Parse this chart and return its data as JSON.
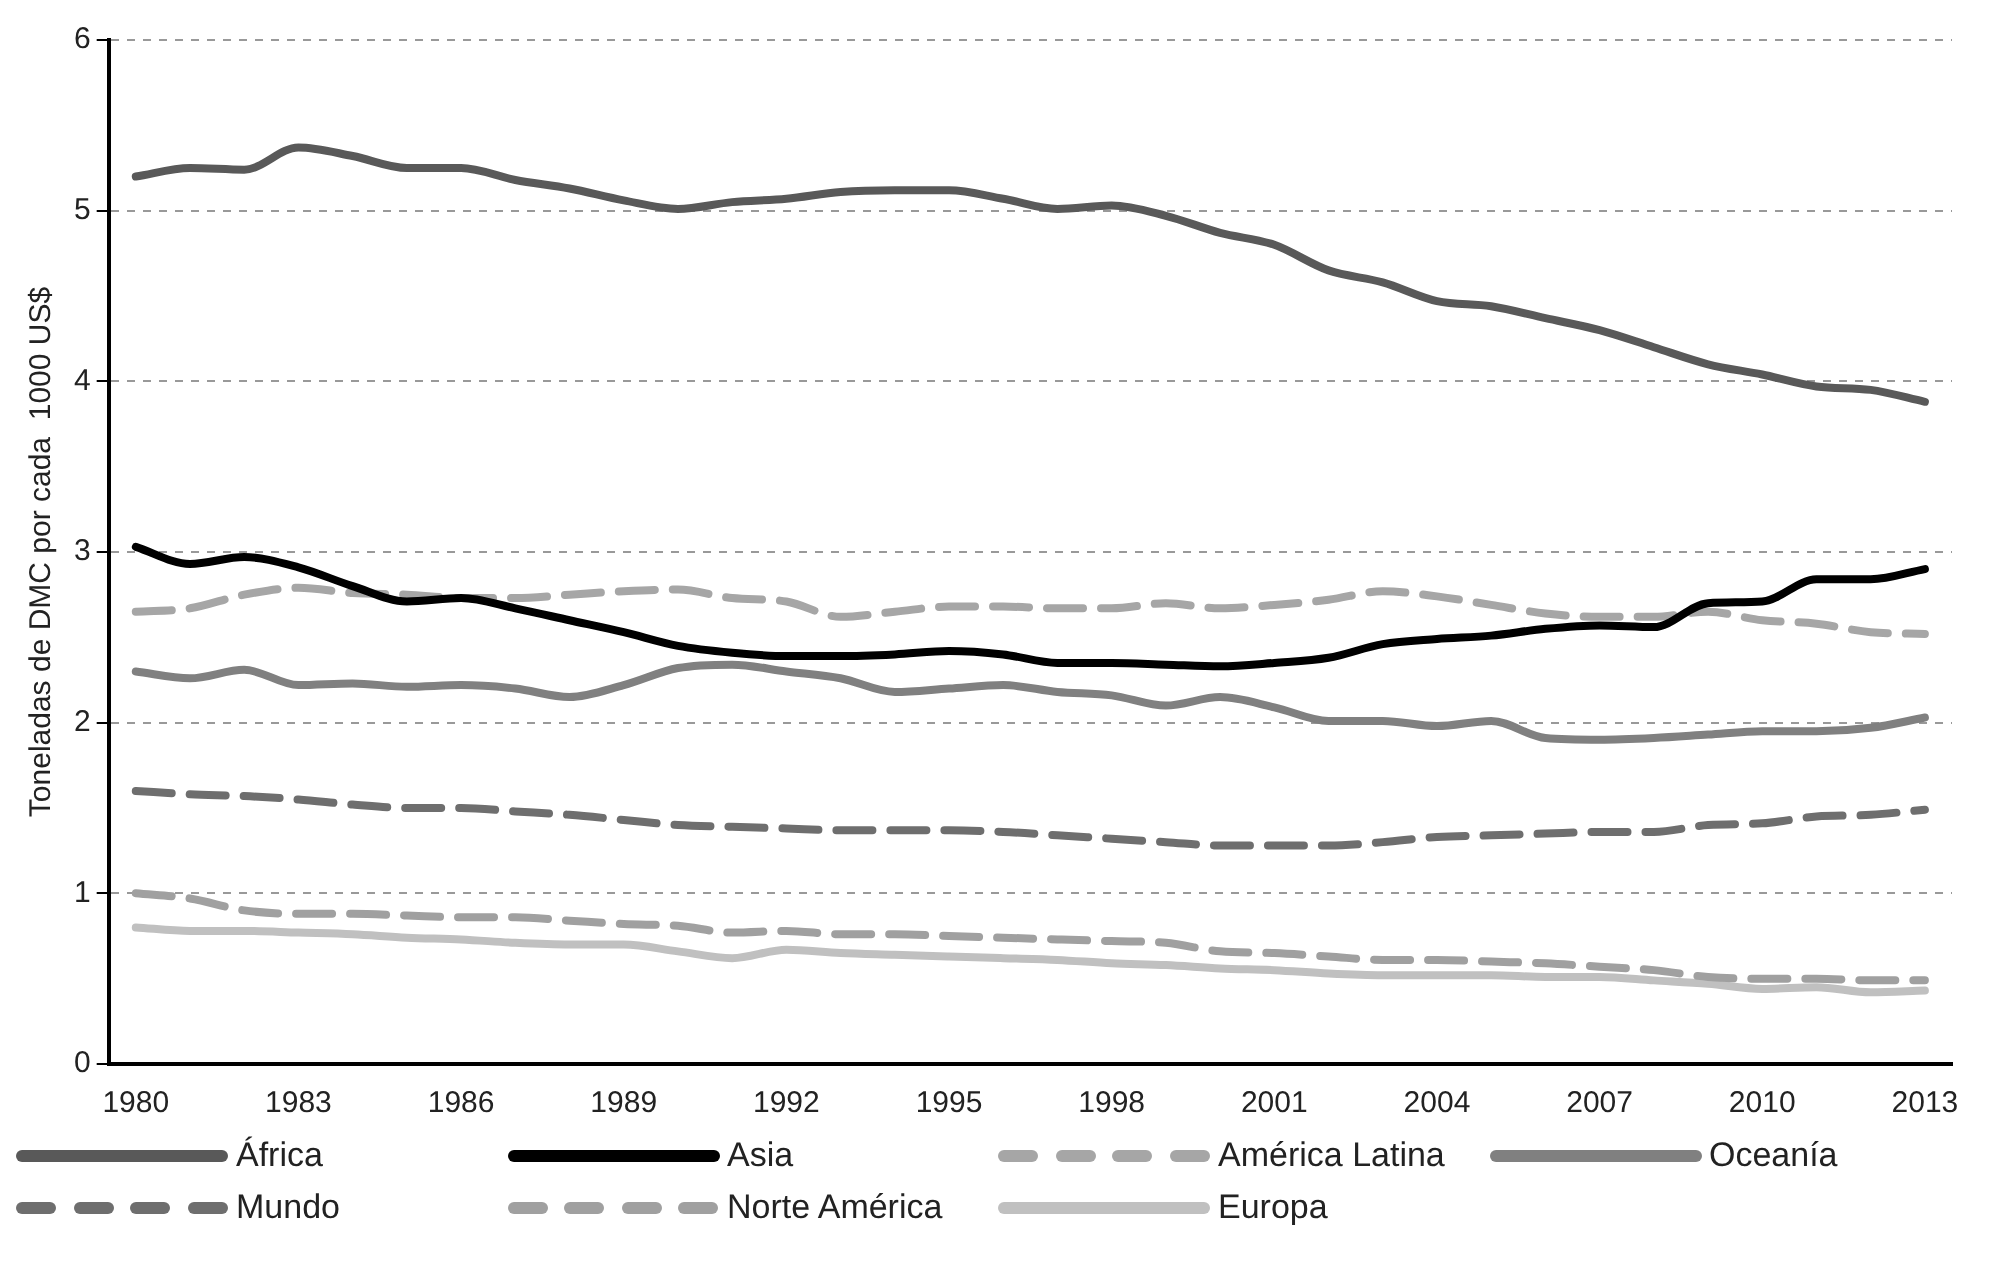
{
  "chart_data": {
    "type": "line",
    "ylabel": "Toneladas de DMC por cada  1000 US$",
    "x": [
      1980,
      1981,
      1982,
      1983,
      1984,
      1985,
      1986,
      1987,
      1988,
      1989,
      1990,
      1991,
      1992,
      1993,
      1994,
      1995,
      1996,
      1997,
      1998,
      1999,
      2000,
      2001,
      2002,
      2003,
      2004,
      2005,
      2006,
      2007,
      2008,
      2009,
      2010,
      2011,
      2012,
      2013
    ],
    "xlim": [
      1979.5,
      2013.5
    ],
    "xticks": [
      1980,
      1983,
      1986,
      1989,
      1992,
      1995,
      1998,
      2001,
      2004,
      2007,
      2010,
      2013
    ],
    "ylim": [
      0,
      6
    ],
    "yticks": [
      0,
      1,
      2,
      3,
      4,
      5,
      6
    ],
    "grid": "y",
    "legend": "bottom",
    "marker": "none",
    "series": [
      {
        "name": "África",
        "color": "#595959",
        "line_style": "solid",
        "values": [
          5.2,
          5.25,
          5.24,
          5.37,
          5.32,
          5.25,
          5.25,
          5.18,
          5.13,
          5.06,
          5.01,
          5.05,
          5.07,
          5.11,
          5.12,
          5.12,
          5.07,
          5.01,
          5.03,
          4.97,
          4.87,
          4.8,
          4.65,
          4.58,
          4.47,
          4.44,
          4.37,
          4.3,
          4.2,
          4.1,
          4.04,
          3.97,
          3.95,
          3.88
        ]
      },
      {
        "name": "Asia",
        "color": "#000000",
        "line_style": "solid",
        "values": [
          3.03,
          2.93,
          2.97,
          2.91,
          2.8,
          2.71,
          2.73,
          2.67,
          2.6,
          2.53,
          2.45,
          2.41,
          2.39,
          2.39,
          2.4,
          2.42,
          2.4,
          2.35,
          2.35,
          2.34,
          2.33,
          2.35,
          2.38,
          2.46,
          2.49,
          2.51,
          2.55,
          2.57,
          2.56,
          2.7,
          2.71,
          2.84,
          2.84,
          2.9
        ]
      },
      {
        "name": "América Latina",
        "color": "#a6a6a6",
        "line_style": "dashed",
        "values": [
          2.65,
          2.67,
          2.75,
          2.79,
          2.76,
          2.75,
          2.73,
          2.73,
          2.75,
          2.77,
          2.78,
          2.73,
          2.71,
          2.62,
          2.65,
          2.68,
          2.68,
          2.67,
          2.67,
          2.7,
          2.67,
          2.69,
          2.72,
          2.77,
          2.74,
          2.69,
          2.64,
          2.62,
          2.62,
          2.65,
          2.6,
          2.58,
          2.53,
          2.52
        ]
      },
      {
        "name": "Oceanía",
        "color": "#808080",
        "line_style": "solid",
        "values": [
          2.3,
          2.26,
          2.31,
          2.22,
          2.23,
          2.21,
          2.22,
          2.2,
          2.15,
          2.22,
          2.32,
          2.34,
          2.3,
          2.26,
          2.18,
          2.2,
          2.22,
          2.18,
          2.16,
          2.1,
          2.15,
          2.09,
          2.01,
          2.01,
          1.98,
          2.01,
          1.91,
          1.9,
          1.91,
          1.93,
          1.95,
          1.95,
          1.97,
          2.03
        ]
      },
      {
        "name": "Mundo",
        "color": "#6e6e6e",
        "line_style": "dashed",
        "values": [
          1.6,
          1.58,
          1.57,
          1.55,
          1.52,
          1.5,
          1.5,
          1.48,
          1.46,
          1.43,
          1.4,
          1.39,
          1.38,
          1.37,
          1.37,
          1.37,
          1.36,
          1.34,
          1.32,
          1.3,
          1.28,
          1.28,
          1.28,
          1.3,
          1.33,
          1.34,
          1.35,
          1.36,
          1.36,
          1.4,
          1.41,
          1.45,
          1.46,
          1.49
        ]
      },
      {
        "name": "Norte América",
        "color": "#a0a0a0",
        "line_style": "dashed",
        "values": [
          1.0,
          0.97,
          0.9,
          0.88,
          0.88,
          0.87,
          0.86,
          0.86,
          0.84,
          0.82,
          0.81,
          0.77,
          0.78,
          0.76,
          0.76,
          0.75,
          0.74,
          0.73,
          0.72,
          0.71,
          0.66,
          0.65,
          0.63,
          0.61,
          0.61,
          0.6,
          0.59,
          0.57,
          0.55,
          0.51,
          0.5,
          0.5,
          0.49,
          0.49
        ]
      },
      {
        "name": "Europa",
        "color": "#c0c0c0",
        "line_style": "solid",
        "values": [
          0.8,
          0.78,
          0.78,
          0.77,
          0.76,
          0.74,
          0.73,
          0.71,
          0.7,
          0.7,
          0.66,
          0.62,
          0.67,
          0.65,
          0.64,
          0.63,
          0.62,
          0.61,
          0.59,
          0.58,
          0.56,
          0.55,
          0.53,
          0.52,
          0.52,
          0.52,
          0.51,
          0.51,
          0.49,
          0.47,
          0.44,
          0.45,
          0.42,
          0.43
        ]
      }
    ]
  }
}
